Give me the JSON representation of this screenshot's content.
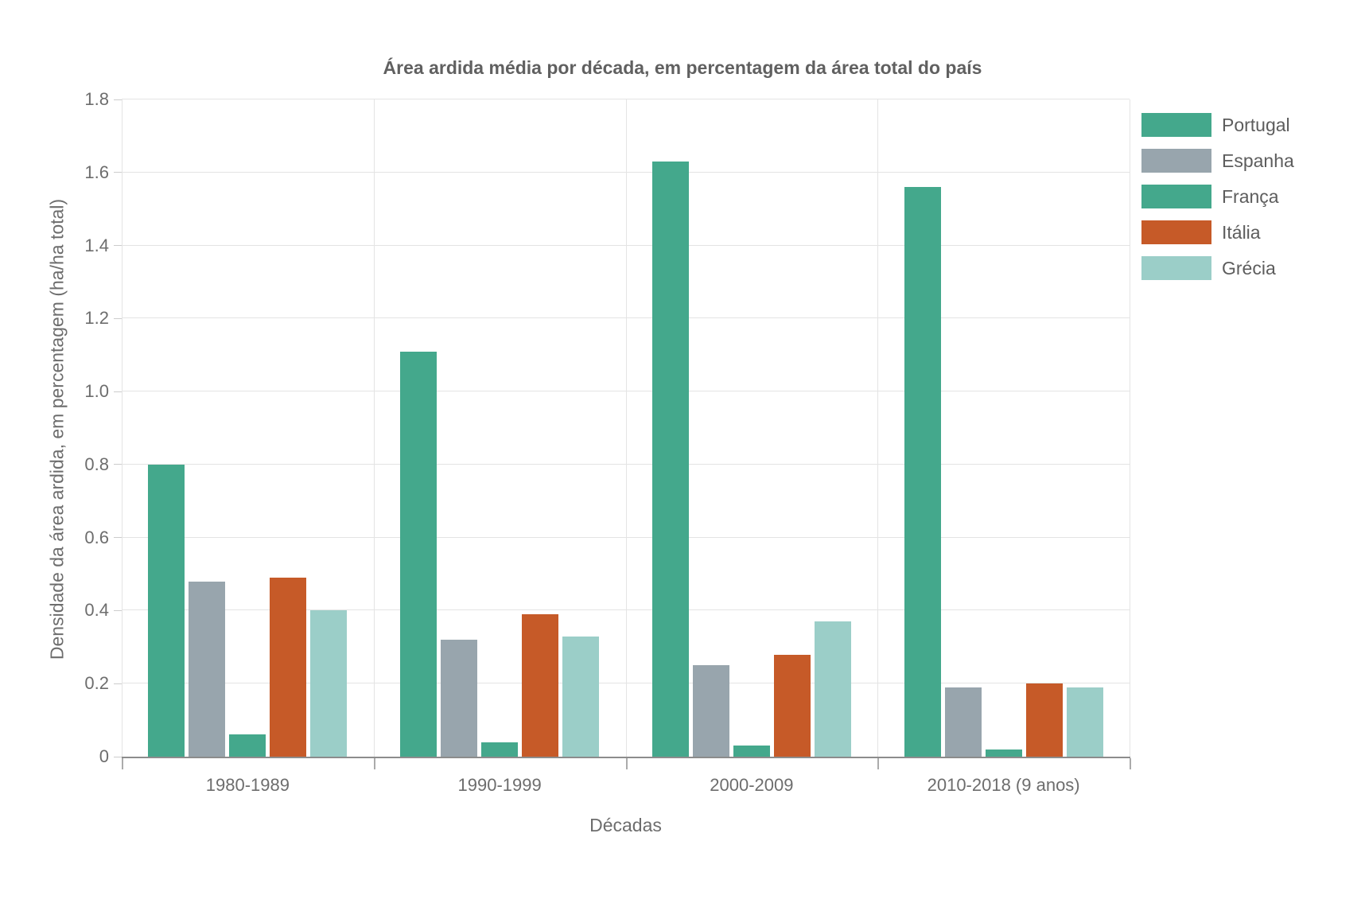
{
  "page": {
    "background": "#ffffff",
    "text_color": "#6d6d6d",
    "grid_color": "#e4e4e4",
    "axis_line_color": "#8c8c8c"
  },
  "chart_data": {
    "type": "bar",
    "title": "Área ardida média por década, em percentagem da área total do país",
    "xlabel": "Décadas",
    "ylabel": "Densidade da área ardida, em percentagem (ha/ha total)",
    "categories": [
      "1980-1989",
      "1990-1999",
      "2000-2009",
      "2010-2018 (9 anos)"
    ],
    "series": [
      {
        "name": "Portugal",
        "color": "#44a88c",
        "values": [
          0.8,
          1.11,
          1.63,
          1.56
        ]
      },
      {
        "name": "Espanha",
        "color": "#98a5ad",
        "values": [
          0.48,
          0.32,
          0.25,
          0.19
        ]
      },
      {
        "name": "França",
        "color": "#44a88c",
        "values": [
          0.06,
          0.04,
          0.03,
          0.02
        ]
      },
      {
        "name": "Itália",
        "color": "#c65a28",
        "values": [
          0.49,
          0.39,
          0.28,
          0.2
        ]
      },
      {
        "name": "Grécia",
        "color": "#9bcec8",
        "values": [
          0.4,
          0.33,
          0.37,
          0.19
        ]
      }
    ],
    "ylim": [
      0,
      1.8
    ],
    "ytick_step": 0.2,
    "yticks": [
      "1.8",
      "1.6",
      "1.4",
      "1.2",
      "1.0",
      "0.8",
      "0.6",
      "0.4",
      "0.2",
      "0"
    ],
    "grid": true,
    "legend_position": "top-right"
  }
}
